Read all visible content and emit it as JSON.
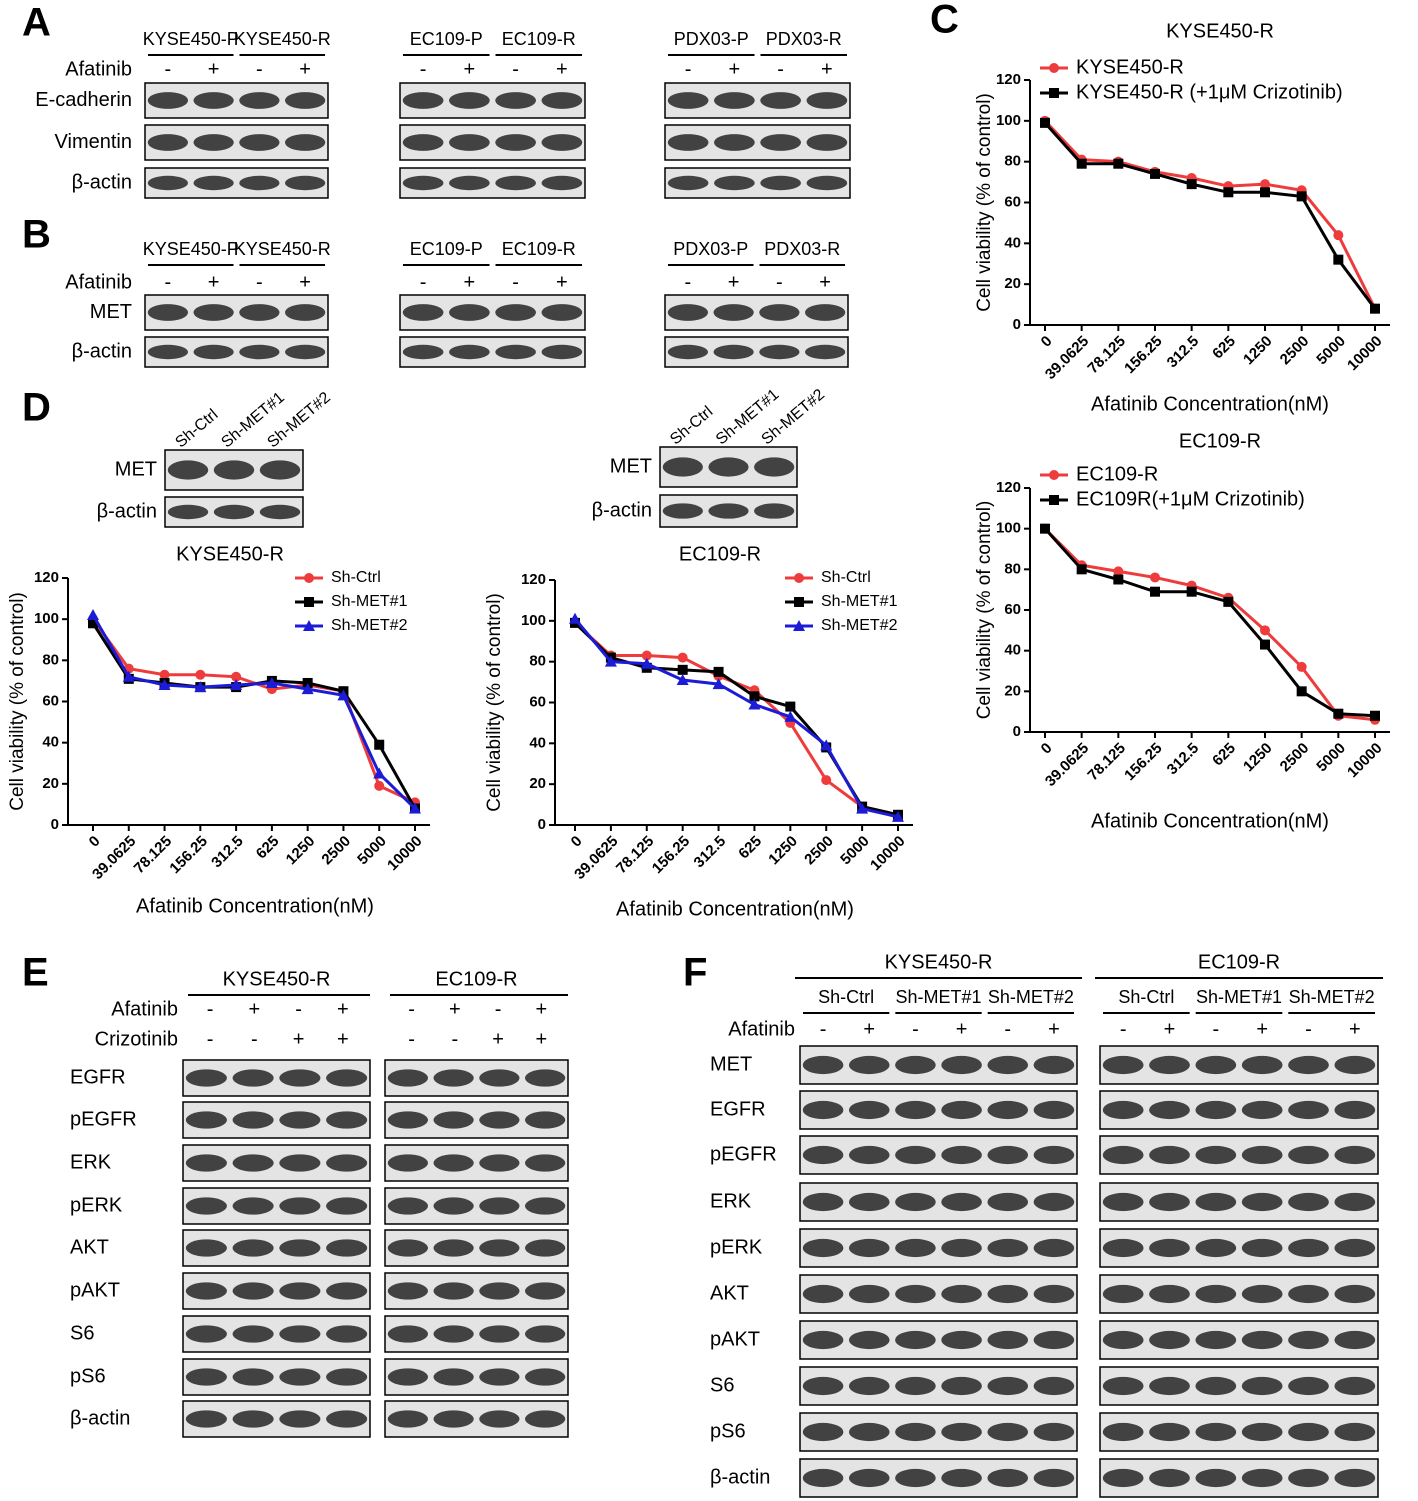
{
  "panel_a": {
    "letter": "A",
    "treatment": "Afatinib",
    "signs": [
      "-",
      "+"
    ],
    "lines": [
      "KYSE450-P",
      "KYSE450-R",
      "EC109-P",
      "EC109-R",
      "PDX03-P",
      "PDX03-R"
    ],
    "rows": [
      "E-cadherin",
      "Vimentin",
      "β-actin"
    ]
  },
  "panel_b": {
    "letter": "B",
    "treatment": "Afatinib",
    "signs": [
      "-",
      "+"
    ],
    "lines": [
      "KYSE450-P",
      "KYSE450-R",
      "EC109-P",
      "EC109-R",
      "PDX03-P",
      "PDX03-R"
    ],
    "rows": [
      "MET",
      "β-actin"
    ]
  },
  "panel_c": {
    "letter": "C"
  },
  "panel_d": {
    "letter": "D",
    "blots": [
      {
        "lanes": [
          "Sh-Ctrl",
          "Sh-MET#1",
          "Sh-MET#2"
        ],
        "rows": [
          "MET",
          "β-actin"
        ]
      },
      {
        "lanes": [
          "Sh-Ctrl",
          "Sh-MET#1",
          "Sh-MET#2"
        ],
        "rows": [
          "MET",
          "β-actin"
        ]
      }
    ]
  },
  "panel_e": {
    "letter": "E",
    "lines": [
      "KYSE450-R",
      "EC109-R"
    ],
    "treatments": [
      {
        "label": "Afatinib",
        "signs": [
          "-",
          "+",
          "-",
          "+"
        ]
      },
      {
        "label": "Crizotinib",
        "signs": [
          "-",
          "-",
          "+",
          "+"
        ]
      }
    ],
    "rows": [
      "EGFR",
      "pEGFR",
      "ERK",
      "pERK",
      "AKT",
      "pAKT",
      "S6",
      "pS6",
      "β-actin"
    ]
  },
  "panel_f": {
    "letter": "F",
    "lines": [
      "KYSE450-R",
      "EC109-R"
    ],
    "groups": [
      "Sh-Ctrl",
      "Sh-MET#1",
      "Sh-MET#2"
    ],
    "treatment": "Afatinib",
    "signs": [
      "-",
      "+"
    ],
    "rows": [
      "MET",
      "EGFR",
      "pEGFR",
      "ERK",
      "pERK",
      "AKT",
      "pAKT",
      "S6",
      "pS6",
      "β-actin"
    ]
  },
  "chart_data": [
    {
      "type": "line",
      "title": "KYSE450-R",
      "x_label": "Afatinib Concentration(nM)",
      "y_label": "Cell viability (% of control)",
      "categories": [
        "0",
        "39.0625",
        "78.125",
        "156.25",
        "312.5",
        "625",
        "1250",
        "2500",
        "5000",
        "10000"
      ],
      "ylim": [
        0,
        120
      ],
      "yticks": [
        0,
        20,
        40,
        60,
        80,
        100,
        120
      ],
      "series": [
        {
          "name": "KYSE450-R",
          "color": "#ee3b3b",
          "values": [
            100,
            81,
            80,
            75,
            72,
            68,
            69,
            66,
            44,
            8
          ]
        },
        {
          "name": "KYSE450-R (+1μM Crizotinib)",
          "color": "#000000",
          "values": [
            99,
            79,
            79,
            74,
            69,
            65,
            65,
            63,
            32,
            8
          ]
        }
      ]
    },
    {
      "type": "line",
      "title": "EC109-R",
      "x_label": "Afatinib Concentration(nM)",
      "y_label": "Cell viability (% of control)",
      "categories": [
        "0",
        "39.0625",
        "78.125",
        "156.25",
        "312.5",
        "625",
        "1250",
        "2500",
        "5000",
        "10000"
      ],
      "ylim": [
        0,
        120
      ],
      "yticks": [
        0,
        20,
        40,
        60,
        80,
        100,
        120
      ],
      "series": [
        {
          "name": "EC109-R",
          "color": "#ee3b3b",
          "values": [
            100,
            82,
            79,
            76,
            72,
            66,
            50,
            32,
            8,
            6
          ]
        },
        {
          "name": "EC109R(+1μM Crizotinib)",
          "color": "#000000",
          "values": [
            100,
            80,
            75,
            69,
            69,
            64,
            43,
            20,
            9,
            8
          ]
        }
      ]
    },
    {
      "type": "line",
      "title": "KYSE450-R",
      "x_label": "Afatinib Concentration(nM)",
      "y_label": "Cell viability (% of control)",
      "categories": [
        "0",
        "39.0625",
        "78.125",
        "156.25",
        "312.5",
        "625",
        "1250",
        "2500",
        "5000",
        "10000"
      ],
      "ylim": [
        0,
        120
      ],
      "yticks": [
        0,
        20,
        40,
        60,
        80,
        100,
        120
      ],
      "series": [
        {
          "name": "Sh-Ctrl",
          "color": "#ee3b3b",
          "values": [
            100,
            76,
            73,
            73,
            72,
            66,
            68,
            65,
            19,
            11
          ]
        },
        {
          "name": "Sh-MET#1",
          "color": "#000000",
          "values": [
            98,
            71,
            69,
            67,
            67,
            70,
            69,
            65,
            39,
            8
          ]
        },
        {
          "name": "Sh-MET#2",
          "color": "#1c1cd6",
          "values": [
            102,
            72,
            68,
            67,
            68,
            69,
            66,
            63,
            25,
            8
          ]
        }
      ]
    },
    {
      "type": "line",
      "title": "EC109-R",
      "x_label": "Afatinib Concentration(nM)",
      "y_label": "Cell viability (% of control)",
      "categories": [
        "0",
        "39.0625",
        "78.125",
        "156.25",
        "312.5",
        "625",
        "1250",
        "2500",
        "5000",
        "10000"
      ],
      "ylim": [
        0,
        120
      ],
      "yticks": [
        0,
        20,
        40,
        60,
        80,
        100,
        120
      ],
      "series": [
        {
          "name": "Sh-Ctrl",
          "color": "#ee3b3b",
          "values": [
            99,
            83,
            83,
            82,
            73,
            66,
            50,
            22,
            9,
            5
          ]
        },
        {
          "name": "Sh-MET#1",
          "color": "#000000",
          "values": [
            99,
            82,
            77,
            76,
            75,
            63,
            58,
            38,
            9,
            5
          ]
        },
        {
          "name": "Sh-MET#2",
          "color": "#1c1cd6",
          "values": [
            101,
            80,
            79,
            71,
            69,
            59,
            53,
            39,
            8,
            4
          ]
        }
      ]
    }
  ]
}
